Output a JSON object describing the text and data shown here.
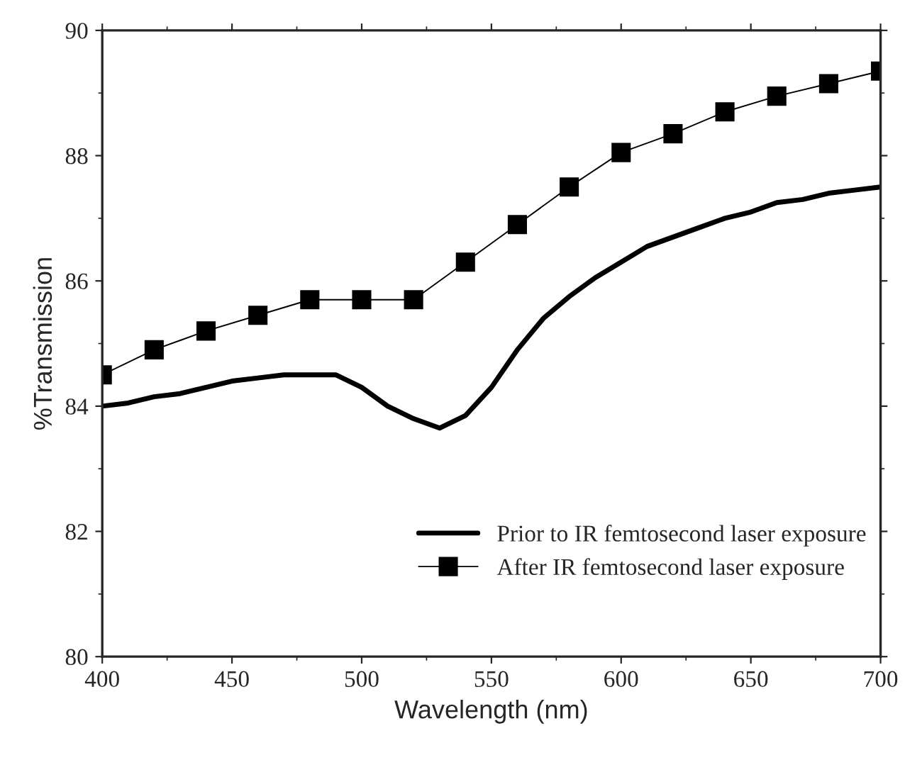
{
  "chart_data": {
    "type": "line",
    "xlabel": "Wavelength (nm)",
    "ylabel": "%Transmission",
    "xlim": [
      400,
      700
    ],
    "xticks": [
      400,
      450,
      500,
      550,
      600,
      650,
      700
    ],
    "ylim": [
      80,
      90
    ],
    "yticks": [
      80,
      82,
      84,
      86,
      88,
      90
    ],
    "legend": "bottom right",
    "grid": false,
    "series": [
      {
        "name": "Prior to IR femtosecond laser exposure",
        "color": "#000000",
        "marker": "none",
        "x": [
          400,
          410,
          420,
          430,
          440,
          450,
          460,
          470,
          480,
          490,
          500,
          510,
          520,
          530,
          540,
          550,
          560,
          570,
          580,
          590,
          600,
          610,
          620,
          630,
          640,
          650,
          660,
          670,
          680,
          690,
          700
        ],
        "values": [
          84.0,
          84.05,
          84.15,
          84.2,
          84.3,
          84.4,
          84.45,
          84.5,
          84.5,
          84.5,
          84.3,
          84.0,
          83.8,
          83.65,
          83.85,
          84.3,
          84.9,
          85.4,
          85.75,
          86.05,
          86.3,
          86.55,
          86.7,
          86.85,
          87.0,
          87.1,
          87.25,
          87.3,
          87.4,
          87.45,
          87.5
        ]
      },
      {
        "name": "After IR femtosecond laser exposure",
        "color": "#000000",
        "marker": "square",
        "x": [
          400,
          420,
          440,
          460,
          480,
          500,
          520,
          540,
          560,
          580,
          600,
          620,
          640,
          660,
          680,
          700
        ],
        "values": [
          84.5,
          84.9,
          85.2,
          85.45,
          85.7,
          85.7,
          85.7,
          86.3,
          86.9,
          87.5,
          88.05,
          88.35,
          88.7,
          88.95,
          89.15,
          89.35
        ]
      }
    ]
  }
}
